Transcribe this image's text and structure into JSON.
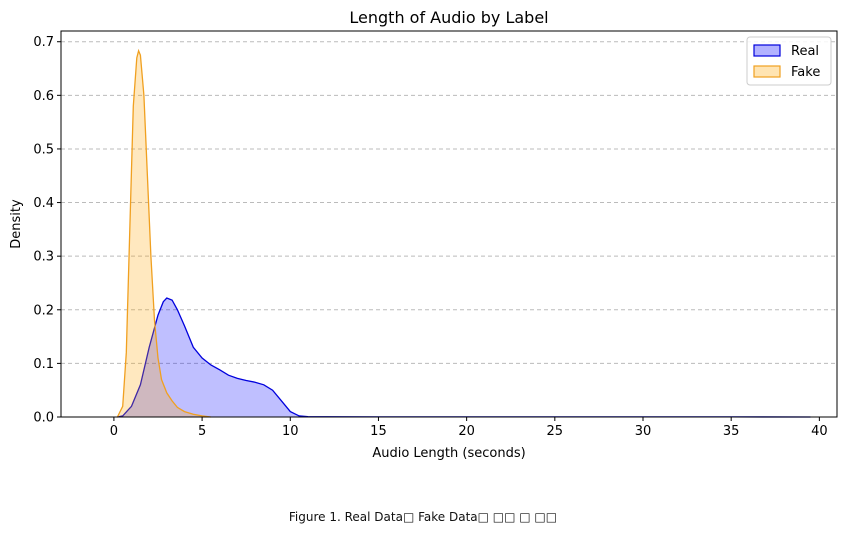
{
  "chart_data": {
    "type": "area",
    "title": "Length of Audio by Label",
    "xlabel": "Audio Length (seconds)",
    "ylabel": "Density",
    "xlim": [
      -3,
      41
    ],
    "ylim": [
      0,
      0.72
    ],
    "x_ticks": [
      0,
      5,
      10,
      15,
      20,
      25,
      30,
      35,
      40
    ],
    "y_ticks": [
      0.0,
      0.1,
      0.2,
      0.3,
      0.4,
      0.5,
      0.6,
      0.7
    ],
    "grid": "horizontal dashed",
    "legend_position": "top-right",
    "series": [
      {
        "name": "Real",
        "line_color": "#0000dd",
        "fill_color": "#0000ff",
        "fill_opacity": 0.25,
        "x": [
          0.2,
          0.5,
          1.0,
          1.5,
          2.0,
          2.5,
          2.8,
          3.0,
          3.3,
          3.6,
          4.0,
          4.5,
          5.0,
          5.5,
          6.0,
          6.5,
          7.0,
          7.5,
          8.0,
          8.5,
          9.0,
          9.5,
          10.0,
          10.5,
          11.0,
          12.0,
          15.0,
          20.0,
          25.0,
          30.0,
          35.0,
          39.5
        ],
        "y": [
          0.0,
          0.002,
          0.02,
          0.06,
          0.13,
          0.19,
          0.215,
          0.222,
          0.218,
          0.2,
          0.17,
          0.13,
          0.11,
          0.097,
          0.088,
          0.078,
          0.072,
          0.068,
          0.065,
          0.06,
          0.05,
          0.03,
          0.01,
          0.002,
          0.0005,
          0.0003,
          0.0002,
          0.0002,
          0.0002,
          0.0002,
          0.0002,
          0.0
        ]
      },
      {
        "name": "Fake",
        "line_color": "#f0a020",
        "fill_color": "#ffa500",
        "fill_opacity": 0.25,
        "x": [
          0.2,
          0.5,
          0.7,
          0.9,
          1.1,
          1.3,
          1.4,
          1.5,
          1.7,
          1.9,
          2.1,
          2.3,
          2.5,
          2.7,
          3.0,
          3.3,
          3.6,
          4.0,
          4.5,
          5.0,
          5.5
        ],
        "y": [
          0.0,
          0.02,
          0.12,
          0.35,
          0.58,
          0.67,
          0.683,
          0.675,
          0.6,
          0.45,
          0.3,
          0.18,
          0.11,
          0.07,
          0.045,
          0.03,
          0.018,
          0.01,
          0.005,
          0.002,
          0.0
        ]
      }
    ]
  },
  "caption": "Figure 1. Real Data□ Fake Data□ □□ □ □□"
}
